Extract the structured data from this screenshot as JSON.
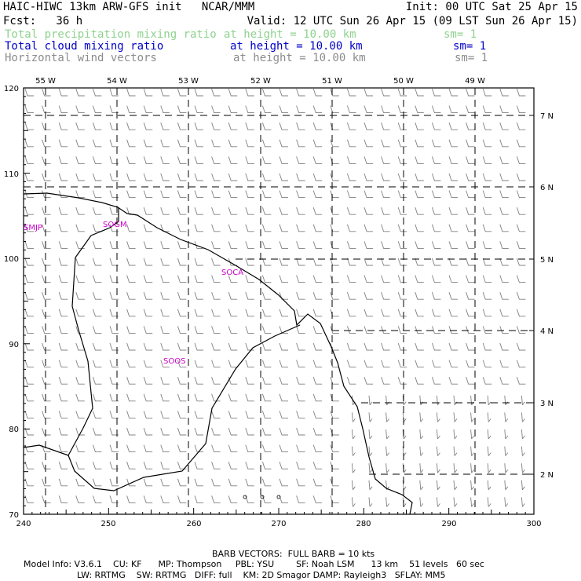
{
  "header": {
    "title": "HAIC-HIWC 13km ARW-GFS init   NCAR/MMM",
    "init": "Init: 00 UTC Sat 25 Apr 15",
    "fcst": "Fcst:   36 h",
    "valid": "Valid: 12 UTC Sun 26 Apr 15 (09 LST Sun 26 Apr 15)",
    "fields": [
      {
        "name": "Total precipitation mixing ratio",
        "level": "at height = 10.00 km",
        "sm": "sm= 1",
        "color": "#8fd28f"
      },
      {
        "name": "Total cloud mixing ratio",
        "level": "at height = 10.00 km",
        "sm": "sm= 1",
        "color": "#0000c8"
      },
      {
        "name": "Horizontal wind vectors",
        "level": "at height = 10.00 km",
        "sm": "sm= 1",
        "color": "#8c8c8c"
      }
    ]
  },
  "map": {
    "lon_labels": [
      "55 W",
      "54 W",
      "53 W",
      "52 W",
      "51 W",
      "50 W",
      "49 W"
    ],
    "lat_labels": [
      "7 N",
      "6 N",
      "5 N",
      "4 N",
      "3 N",
      "2 N"
    ],
    "x_ticks": [
      "240",
      "250",
      "260",
      "270",
      "280",
      "290",
      "300"
    ],
    "y_ticks": [
      "120",
      "110",
      "100",
      "90",
      "80",
      "70"
    ],
    "stations": [
      {
        "id": "SMJP",
        "color": "#cc00cc"
      },
      {
        "id": "SOGM",
        "color": "#cc00cc"
      },
      {
        "id": "SOCA",
        "color": "#cc00cc"
      },
      {
        "id": "SOOS",
        "color": "#cc00cc"
      }
    ]
  },
  "footer": {
    "barb": "BARB VECTORS:  FULL BARB = 10 kts",
    "model_line1": "Model Info: V3.6.1    CU: KF      MP: Thompson     PBL: YSU        SF: Noah LSM      13 km    51 levels   60 sec",
    "model_line2": "LW: RRTMG    SW: RRTMG   DIFF: full    KM: 2D Smagor DAMP: Rayleigh3   SFLAY: MM5"
  }
}
